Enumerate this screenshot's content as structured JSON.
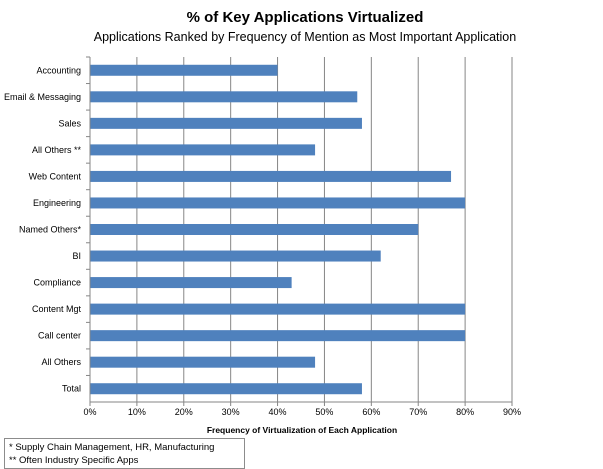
{
  "chart_data": {
    "type": "bar",
    "orientation": "horizontal",
    "title": "% of Key Applications Virtualized",
    "subtitle": "Applications Ranked by Frequency of Mention as Most Important Application",
    "xlabel": "Frequency of Virtualization  of Each Application",
    "ylabel": "",
    "categories": [
      "Accounting",
      "Email & Messaging",
      "Sales",
      "All Others **",
      "Web Content",
      "Engineering",
      "Named Others*",
      "BI",
      "Compliance",
      "Content Mgt",
      "Call center",
      "All Others",
      "Total"
    ],
    "values": [
      40,
      57,
      58,
      48,
      77,
      80,
      70,
      62,
      43,
      80,
      80,
      48,
      58
    ],
    "xlim": [
      0,
      90
    ],
    "xticks": [
      "0%",
      "10%",
      "20%",
      "30%",
      "40%",
      "50%",
      "60%",
      "70%",
      "80%",
      "90%"
    ],
    "grid": true,
    "bar_color": "#4f81bd",
    "gridline_color": "#868686"
  },
  "footnotes": [
    "* Supply Chain Management, HR, Manufacturing",
    "** Often Industry Specific Apps"
  ]
}
